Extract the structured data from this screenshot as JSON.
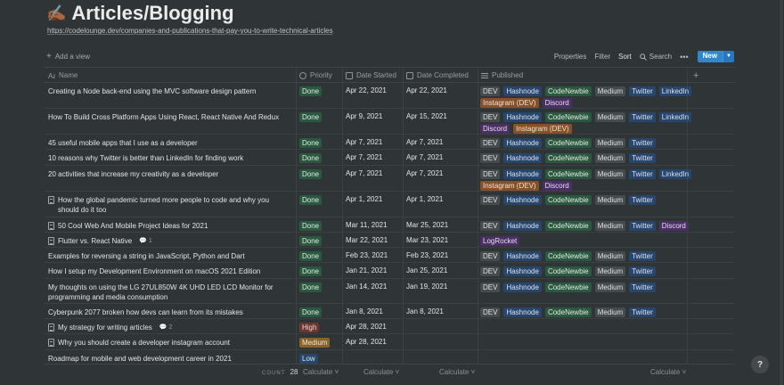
{
  "page": {
    "emoji": "✍🏾",
    "title": "Articles/Blogging",
    "url": "https://codelounge.dev/companies-and-publications-that-pay-you-to-write-technical-articles"
  },
  "toolbar": {
    "add_view": "Add a view",
    "properties": "Properties",
    "filter": "Filter",
    "sort": "Sort",
    "search": "Search",
    "more": "•••",
    "new": "New"
  },
  "columns": {
    "name": "Name",
    "priority": "Priority",
    "date_started": "Date Started",
    "date_completed": "Date Completed",
    "published": "Published",
    "add": "+"
  },
  "tag_colors": {
    "Done": "green",
    "High": "red",
    "Medium": "yellow",
    "Low": "blue",
    "DEV": "grey",
    "Hashnode": "blue",
    "CodeNewbie": "green",
    "Medium_pub": "grey",
    "Twitter": "blue",
    "LinkedIn": "blue",
    "Instagram (DEV)": "orange",
    "Discord": "purple",
    "LogRocket": "purple"
  },
  "rows": [
    {
      "name": "Creating a Node back-end using the MVC software design pattern",
      "doc": false,
      "comments": "",
      "priority": "Done",
      "started": "Apr 22, 2021",
      "completed": "Apr 22, 2021",
      "published": [
        "DEV",
        "Hashnode",
        "CodeNewbie",
        "Medium",
        "Twitter",
        "LinkedIn",
        "Instagram (DEV)",
        "Discord"
      ]
    },
    {
      "name": "How To Build Cross Platform Apps Using React, React Native And Redux",
      "doc": false,
      "comments": "",
      "priority": "Done",
      "started": "Apr 9, 2021",
      "completed": "Apr 15, 2021",
      "published": [
        "DEV",
        "Hashnode",
        "CodeNewbie",
        "Medium",
        "Twitter",
        "LinkedIn",
        "Discord",
        "Instagram (DEV)"
      ]
    },
    {
      "name": "45 useful mobile apps that I use as a developer",
      "doc": false,
      "comments": "",
      "priority": "Done",
      "started": "Apr 7, 2021",
      "completed": "Apr 7, 2021",
      "published": [
        "DEV",
        "Hashnode",
        "CodeNewbie",
        "Medium",
        "Twitter"
      ]
    },
    {
      "name": "10 reasons why Twitter is better than LinkedIn for finding work",
      "doc": false,
      "comments": "",
      "priority": "Done",
      "started": "Apr 7, 2021",
      "completed": "Apr 7, 2021",
      "published": [
        "DEV",
        "Hashnode",
        "CodeNewbie",
        "Medium",
        "Twitter"
      ]
    },
    {
      "name": "20 activities that increase my creativity as a developer",
      "doc": false,
      "comments": "",
      "priority": "Done",
      "started": "Apr 7, 2021",
      "completed": "Apr 7, 2021",
      "published": [
        "DEV",
        "Hashnode",
        "CodeNewbie",
        "Medium",
        "Twitter",
        "LinkedIn",
        "Instagram (DEV)",
        "Discord"
      ]
    },
    {
      "name": "How the global pandemic turned more people to code and why you should do it too",
      "doc": true,
      "comments": "",
      "priority": "Done",
      "started": "Apr 1, 2021",
      "completed": "Apr 1, 2021",
      "published": [
        "DEV",
        "Hashnode",
        "CodeNewbie",
        "Medium",
        "Twitter"
      ]
    },
    {
      "name": "50 Cool Web And Mobile Project Ideas for 2021",
      "doc": true,
      "comments": "",
      "priority": "Done",
      "started": "Mar 11, 2021",
      "completed": "Mar 25, 2021",
      "published": [
        "DEV",
        "Hashnode",
        "CodeNewbie",
        "Medium",
        "Twitter",
        "Discord"
      ]
    },
    {
      "name": "Flutter vs. React Native",
      "doc": true,
      "comments": "1",
      "priority": "Done",
      "started": "Mar 22, 2021",
      "completed": "Mar 23, 2021",
      "published": [
        "LogRocket"
      ]
    },
    {
      "name": "Examples for reversing a string in JavaScript, Python and Dart",
      "doc": false,
      "comments": "",
      "priority": "Done",
      "started": "Feb 23, 2021",
      "completed": "Feb 23, 2021",
      "published": [
        "DEV",
        "Hashnode",
        "CodeNewbie",
        "Medium",
        "Twitter"
      ]
    },
    {
      "name": "How I setup my Development Environment on macOS 2021 Edition",
      "doc": false,
      "comments": "",
      "priority": "Done",
      "started": "Jan 21, 2021",
      "completed": "Jan 25, 2021",
      "published": [
        "DEV",
        "Hashnode",
        "CodeNewbie",
        "Medium",
        "Twitter"
      ]
    },
    {
      "name": "My thoughts on using the LG 27UL850W 4K UHD LED LCD Monitor for programming and media consumption",
      "doc": false,
      "comments": "",
      "priority": "Done",
      "started": "Jan 14, 2021",
      "completed": "Jan 19, 2021",
      "published": [
        "DEV",
        "Hashnode",
        "CodeNewbie",
        "Medium",
        "Twitter"
      ]
    },
    {
      "name": "Cyberpunk 2077 broken how devs can learn from its mistakes",
      "doc": false,
      "comments": "",
      "priority": "Done",
      "started": "Jan 8, 2021",
      "completed": "Jan 8, 2021",
      "published": [
        "DEV",
        "Hashnode",
        "CodeNewbie",
        "Medium",
        "Twitter"
      ]
    },
    {
      "name": "My strategy for writing articles",
      "doc": true,
      "comments": "2",
      "priority": "High",
      "started": "Apr 28, 2021",
      "completed": "",
      "published": []
    },
    {
      "name": "Why you should create a developer instagram account",
      "doc": true,
      "comments": "",
      "priority": "Medium",
      "started": "Apr 28, 2021",
      "completed": "",
      "published": []
    },
    {
      "name": "Roadmap for mobile and web development career in 2021",
      "doc": false,
      "comments": "",
      "priority": "Low",
      "started": "",
      "completed": "",
      "published": []
    }
  ],
  "footer": {
    "count_label": "COUNT",
    "count": "28",
    "calculate": "Calculate"
  },
  "help": "?"
}
